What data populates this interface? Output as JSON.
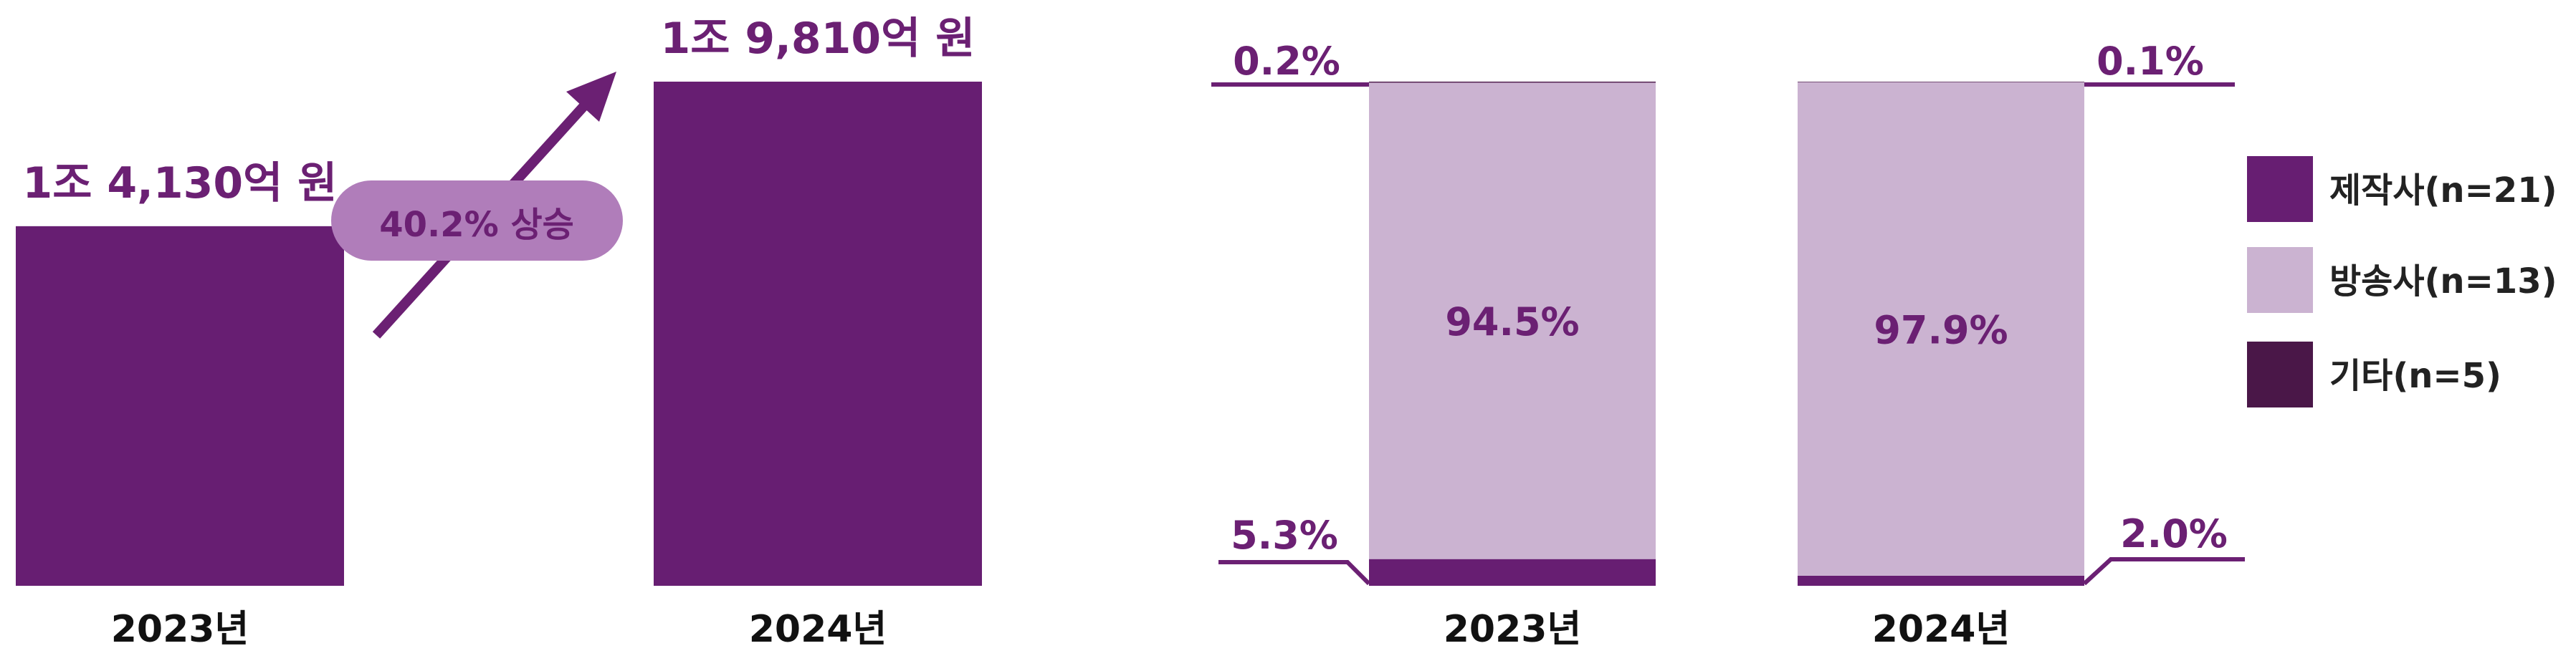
{
  "colors": {
    "producer": "#671E72",
    "broadcaster": "#CBB3D1",
    "other": "#4A1748",
    "accent": "#6B2073",
    "pill_bg": "#B07DBA",
    "axis_text": "#111111"
  },
  "chart_data": [
    {
      "type": "bar",
      "categories": [
        "2023년",
        "2024년"
      ],
      "values": [
        14130,
        19810
      ],
      "value_labels": [
        "1조 4,130억 원",
        "1조 9,810억 원"
      ],
      "unit": "억 원",
      "annotation": "40.2% 상승",
      "ylim": [
        0,
        19810
      ]
    },
    {
      "type": "bar",
      "stacked": true,
      "normalized": true,
      "categories": [
        "2023년",
        "2024년"
      ],
      "series": [
        {
          "name": "제작사(n=21)",
          "values": [
            5.3,
            2.0
          ],
          "labels": [
            "5.3%",
            "2.0%"
          ]
        },
        {
          "name": "방송사(n=13)",
          "values": [
            94.5,
            97.9
          ],
          "labels": [
            "94.5%",
            "97.9%"
          ]
        },
        {
          "name": "기타(n=5)",
          "values": [
            0.2,
            0.1
          ],
          "labels": [
            "0.2%",
            "0.1%"
          ]
        }
      ],
      "ylim": [
        0,
        100
      ],
      "legend_position": "right"
    }
  ]
}
